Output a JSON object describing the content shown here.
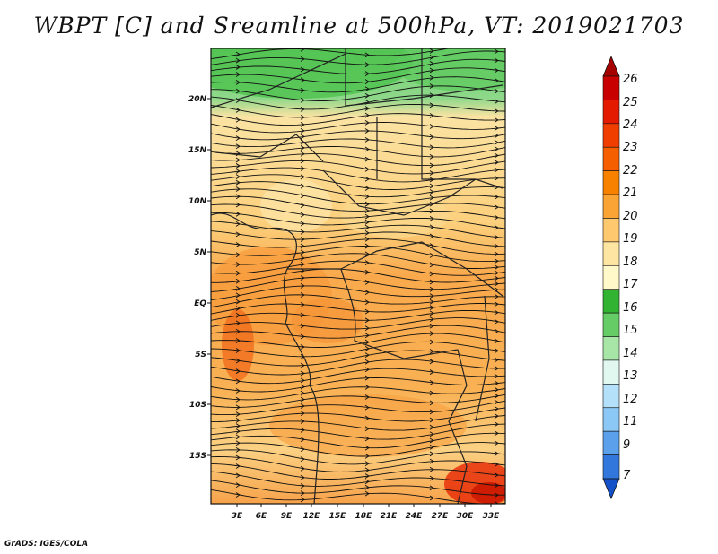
{
  "title": "WBPT [C] and Sreamline at 500hPa, VT: 2019021703",
  "credit": "GrADS: IGES/COLA",
  "lat_labels": [
    "20N",
    "15N",
    "10N",
    "5N",
    "EQ",
    "5S",
    "10S",
    "15S"
  ],
  "lon_labels": [
    "3E",
    "6E",
    "9E",
    "12E",
    "15E",
    "18E",
    "21E",
    "24E",
    "27E",
    "30E",
    "33E"
  ],
  "colorbar": {
    "labels": [
      "26",
      "25",
      "24",
      "23",
      "22",
      "21",
      "20",
      "19",
      "18",
      "17",
      "16",
      "15",
      "14",
      "13",
      "12",
      "11",
      "9",
      "7"
    ],
    "colors": [
      "#a50000",
      "#c80000",
      "#e31a00",
      "#f03e00",
      "#f55f00",
      "#f88200",
      "#fba436",
      "#fdc86e",
      "#fee5a1",
      "#fff8c8",
      "#32b432",
      "#66cc66",
      "#a8e6a8",
      "#e0f8f0",
      "#b4e0fa",
      "#8cc8f5",
      "#5aa0eb",
      "#3278dc",
      "#1450c8"
    ]
  }
}
